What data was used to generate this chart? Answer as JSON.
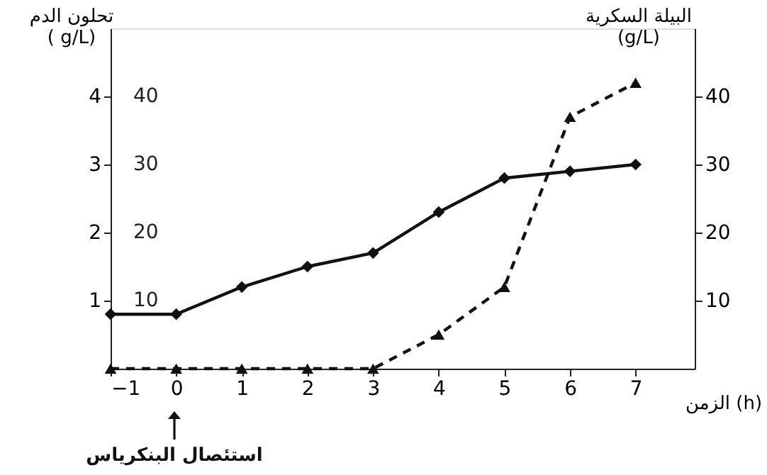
{
  "chart_data": {
    "type": "line",
    "xlabel": "الزمن (h)",
    "ylabel": "تحلون الدم\n( g/L)",
    "y2label": "البيلة السكرية\n(g/L)",
    "x": [
      -1,
      0,
      1,
      2,
      3,
      4,
      5,
      6,
      7
    ],
    "series": [
      {
        "color": "#111111",
        "marker": "diamond",
        "line_style": "solid",
        "values": [
          0.8,
          0.8,
          1.2,
          1.5,
          1.7,
          2.3,
          2.8,
          2.9,
          3.0
        ]
      },
      {
        "color": "#111111",
        "marker": "triangle",
        "line_style": "dashed",
        "axis": "y2",
        "values": [
          0,
          0,
          0,
          0,
          0,
          5,
          12,
          37,
          42
        ]
      }
    ],
    "xlim": [
      -1,
      7.9
    ],
    "xticks": [
      -1,
      0,
      1,
      2,
      3,
      4,
      5,
      6,
      7
    ],
    "ylim": [
      0,
      5
    ],
    "yticks": [
      1,
      2,
      3,
      4
    ],
    "y2lim": [
      0,
      50
    ],
    "y2ticks": [
      10,
      20,
      30,
      40
    ],
    "y3lim": [
      0,
      50
    ],
    "y3ticks": [
      10,
      20,
      30,
      40
    ],
    "annotations": [
      "استئصال البنكرياس"
    ],
    "grid": false
  }
}
